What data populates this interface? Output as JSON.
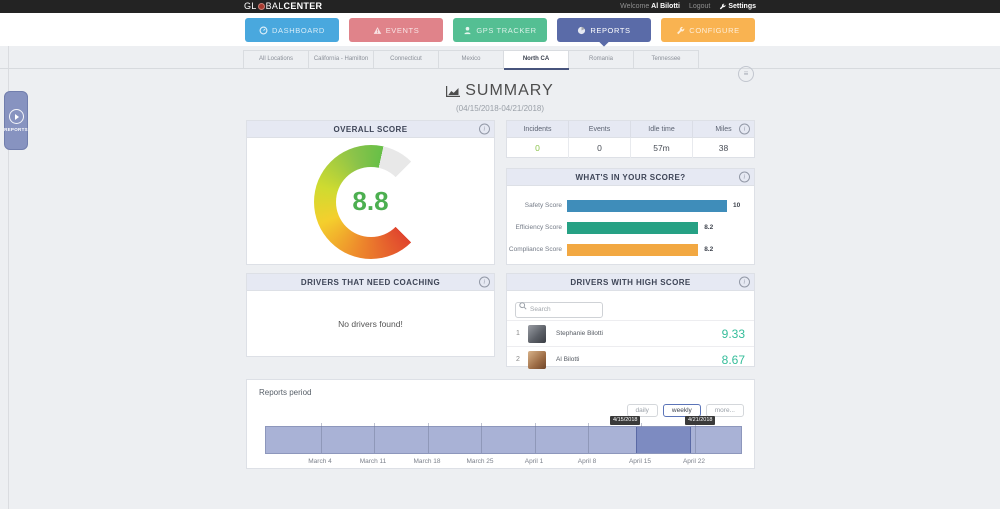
{
  "header": {
    "logo_gl": "GL",
    "logo_bal": "BAL",
    "logo_center": "CENTER",
    "welcome_label": "Welcome",
    "user_name": "Al Bilotti",
    "logout_label": "Logout",
    "settings_label": "Settings"
  },
  "nav": {
    "buttons": [
      {
        "label": "DASHBOARD",
        "color": "#49a8de",
        "icon": "gauge-icon",
        "active": false
      },
      {
        "label": "EVENTS",
        "color": "#e0838a",
        "icon": "warning-icon",
        "active": false
      },
      {
        "label": "GPS TRACKER",
        "color": "#54bf93",
        "icon": "person-icon",
        "active": false
      },
      {
        "label": "REPORTS",
        "color": "#5a6ba8",
        "icon": "pie-icon",
        "active": true
      },
      {
        "label": "CONFIGURE",
        "color": "#f9b351",
        "icon": "wrench-icon",
        "active": false
      }
    ]
  },
  "location_tabs": {
    "tabs": [
      "All Locations",
      "California - Hamilton",
      "Connecticut",
      "Mexico",
      "North CA",
      "Romania",
      "Tennessee"
    ],
    "active": "North CA"
  },
  "side_tab": {
    "label": "REPORTS"
  },
  "page": {
    "title": "SUMMARY",
    "date_range": "(04/15/2018-04/21/2018)"
  },
  "overall_score": {
    "title": "OVERALL SCORE",
    "value": "8.8",
    "value_color": "#4caf50"
  },
  "stats": {
    "columns": [
      {
        "label": "Incidents",
        "value": "0",
        "color": "#8bc34a"
      },
      {
        "label": "Events",
        "value": "0",
        "color": "#474c55"
      },
      {
        "label": "Idle time",
        "value": "57m",
        "color": "#474c55"
      },
      {
        "label": "Miles",
        "value": "38",
        "color": "#474c55"
      }
    ]
  },
  "score_breakdown": {
    "title": "WHAT'S IN YOUR SCORE?",
    "chart_data": {
      "type": "bar",
      "categories": [
        "Safety Score",
        "Efficiency Score",
        "Compliance Score"
      ],
      "values": [
        10,
        8.2,
        8.2
      ],
      "labels": [
        "10",
        "8.2",
        "8.2"
      ],
      "colors": [
        "#3f8dba",
        "#26a184",
        "#f2a842"
      ],
      "max": 10
    }
  },
  "coaching": {
    "title": "DRIVERS THAT NEED COACHING",
    "empty_message": "No drivers found!"
  },
  "high_score": {
    "title": "DRIVERS WITH HIGH SCORE",
    "search_placeholder": "Search",
    "score_color": "#35bd9a",
    "drivers": [
      {
        "rank": "1",
        "name": "Stephanie Bilotti",
        "score": "9.33"
      },
      {
        "rank": "2",
        "name": "Al Bilotti",
        "score": "8.67"
      }
    ]
  },
  "reports_period": {
    "label": "Reports period",
    "buttons": [
      {
        "label": "daily",
        "active": false
      },
      {
        "label": "weekly",
        "active": true
      },
      {
        "label": "more...",
        "active": false
      }
    ],
    "tooltips": [
      "4/15/2018",
      "4/21/2018"
    ],
    "axis_labels": [
      "March 4",
      "March 11",
      "March 18",
      "March 25",
      "April 1",
      "April 8",
      "April 15",
      "April 22"
    ],
    "chart_data": {
      "type": "area",
      "navigator_axis": [
        "March 4",
        "March 11",
        "March 18",
        "March 25",
        "April 1",
        "April 8",
        "April 15",
        "April 22"
      ],
      "selected_range": [
        "4/15/2018",
        "4/21/2018"
      ],
      "bar_color": "#a9b2d6",
      "selection_color": "#7d8bc1"
    }
  }
}
